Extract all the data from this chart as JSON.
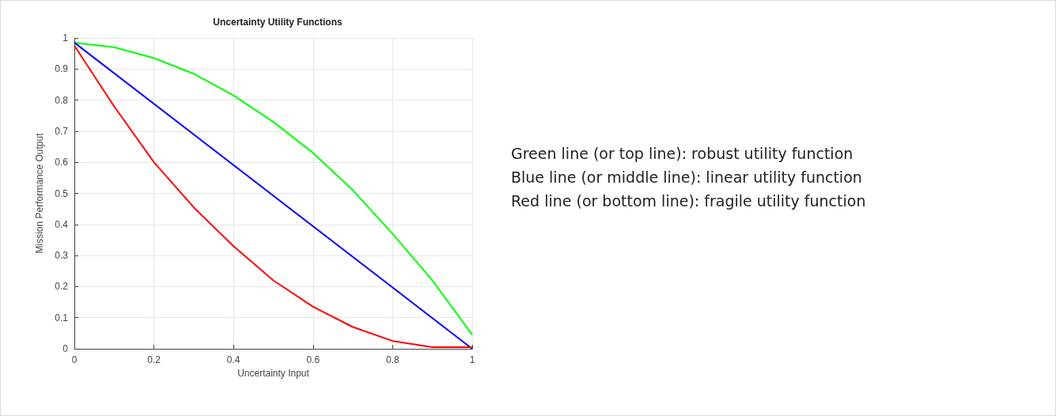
{
  "chart_data": {
    "type": "line",
    "title": "Uncertainty Utility Functions",
    "xlabel": "Uncertainty Input",
    "ylabel": "Mission Performance Output",
    "x": [
      0,
      0.1,
      0.2,
      0.3,
      0.4,
      0.5,
      0.6,
      0.7,
      0.8,
      0.9,
      1
    ],
    "series": [
      {
        "color": "#00ff00",
        "values": [
          0.985,
          0.97,
          0.935,
          0.885,
          0.815,
          0.73,
          0.63,
          0.51,
          0.37,
          0.22,
          0.045
        ]
      },
      {
        "color": "#0000ff",
        "x": [
          0,
          1
        ],
        "values": [
          0.985,
          0
        ]
      },
      {
        "color": "#ff0000",
        "values": [
          0.975,
          0.78,
          0.6,
          0.455,
          0.33,
          0.22,
          0.135,
          0.07,
          0.025,
          0.005,
          0.005
        ]
      }
    ],
    "xlim": [
      0,
      1
    ],
    "xticks": [
      0,
      0.2,
      0.4,
      0.6,
      0.8,
      1
    ],
    "ylim": [
      0,
      1
    ],
    "yticks": [
      0,
      0.1,
      0.2,
      0.3,
      0.4,
      0.5,
      0.6,
      0.7,
      0.8,
      0.9,
      1
    ],
    "grid": true,
    "marker": "none",
    "line_style": "solid",
    "annotations": [
      "Green line (or top line): robust utility function",
      "Blue line (or middle line): linear utility function",
      "Red line (or bottom line): fragile utility function"
    ]
  }
}
